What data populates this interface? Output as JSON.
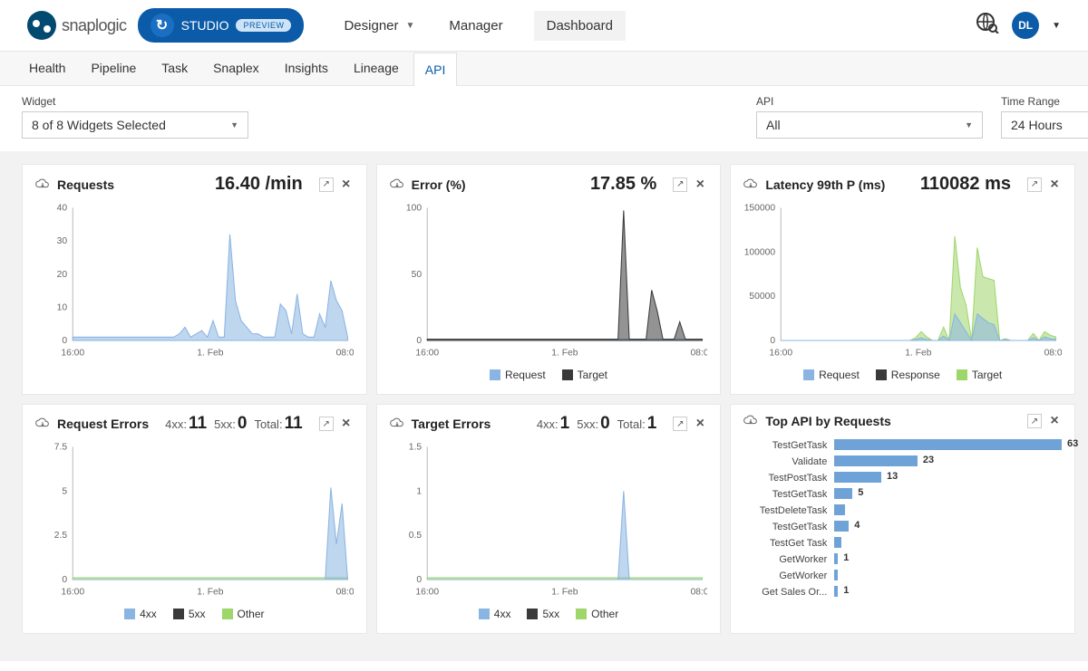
{
  "brand": {
    "name": "snaplogic",
    "studio_label": "STUDIO",
    "preview_label": "PREVIEW"
  },
  "main_nav": {
    "designer": "Designer",
    "manager": "Manager",
    "dashboard": "Dashboard"
  },
  "user": {
    "initials": "DL"
  },
  "subtabs": {
    "health": "Health",
    "pipeline": "Pipeline",
    "task": "Task",
    "snaplex": "Snaplex",
    "insights": "Insights",
    "lineage": "Lineage",
    "api": "API"
  },
  "filters": {
    "widget_label": "Widget",
    "widget_value": "8 of 8 Widgets Selected",
    "api_label": "API",
    "api_value": "All",
    "time_label": "Time Range",
    "time_value": "24 Hours"
  },
  "colors": {
    "blue_fill": "#8ab4e2",
    "blue_line": "#5a8fcf",
    "dark": "#3a3a3a",
    "green": "#9fd66a",
    "green_line": "#7cc143",
    "grid": "#e9e9e9",
    "axis_text": "#777"
  },
  "widgets": {
    "requests": {
      "title": "Requests",
      "metric": "16.40 /min",
      "ylim": [
        0,
        40
      ],
      "yticks": [
        0,
        10,
        20,
        30,
        40
      ],
      "xticks": [
        "16:00",
        "1. Feb",
        "08:00"
      ],
      "series": [
        {
          "name": "requests",
          "color": "#8ab4e2",
          "values": [
            1,
            1,
            1,
            1,
            1,
            1,
            1,
            1,
            1,
            1,
            1,
            1,
            1,
            1,
            1,
            1,
            1,
            1,
            1,
            2,
            4,
            1,
            2,
            3,
            1,
            6,
            1,
            1,
            32,
            12,
            6,
            4,
            2,
            2,
            1,
            1,
            1,
            11,
            9,
            2,
            14,
            2,
            1,
            1,
            8,
            4,
            18,
            12,
            9,
            1
          ]
        }
      ]
    },
    "error": {
      "title": "Error (%)",
      "metric": "17.85 %",
      "ylim": [
        0,
        100
      ],
      "yticks": [
        0,
        50,
        100
      ],
      "xticks": [
        "16:00",
        "1. Feb",
        "08:00"
      ],
      "legend": [
        {
          "label": "Request",
          "color": "#8ab4e2"
        },
        {
          "label": "Target",
          "color": "#3a3a3a"
        }
      ],
      "series": [
        {
          "name": "request",
          "color": "#8ab4e2",
          "values": [
            1,
            1,
            1,
            1,
            1,
            1,
            1,
            1,
            1,
            1,
            1,
            1,
            1,
            1,
            1,
            1,
            1,
            1,
            1,
            1,
            1,
            1,
            1,
            1,
            1,
            1,
            1,
            1,
            1,
            1,
            1,
            1,
            1,
            1,
            1,
            1,
            1,
            1,
            1,
            1,
            1,
            1,
            1,
            1,
            1,
            1,
            1,
            1,
            1,
            1
          ]
        },
        {
          "name": "target",
          "color": "#3a3a3a",
          "values": [
            1,
            1,
            1,
            1,
            1,
            1,
            1,
            1,
            1,
            1,
            1,
            1,
            1,
            1,
            1,
            1,
            1,
            1,
            1,
            1,
            1,
            1,
            1,
            1,
            1,
            1,
            1,
            1,
            1,
            1,
            1,
            1,
            1,
            1,
            1,
            98,
            1,
            1,
            1,
            1,
            38,
            22,
            1,
            1,
            1,
            14,
            1,
            1,
            1,
            1
          ]
        }
      ]
    },
    "latency": {
      "title": "Latency 99th P (ms)",
      "metric": "110082 ms",
      "ylim": [
        0,
        150000
      ],
      "yticks": [
        0,
        50000,
        100000,
        150000
      ],
      "xticks": [
        "16:00",
        "1. Feb",
        "08:00"
      ],
      "legend": [
        {
          "label": "Request",
          "color": "#8ab4e2"
        },
        {
          "label": "Response",
          "color": "#3a3a3a"
        },
        {
          "label": "Target",
          "color": "#9fd66a"
        }
      ],
      "series": [
        {
          "name": "target",
          "color": "#9fd66a",
          "values": [
            0,
            0,
            0,
            0,
            0,
            0,
            0,
            0,
            0,
            0,
            0,
            0,
            0,
            0,
            0,
            0,
            0,
            0,
            0,
            0,
            0,
            0,
            0,
            0,
            3000,
            10000,
            4000,
            0,
            0,
            15000,
            0,
            118000,
            60000,
            40000,
            0,
            105000,
            72000,
            70000,
            68000,
            0,
            2000,
            0,
            0,
            0,
            0,
            8000,
            0,
            10000,
            6000,
            4000
          ]
        },
        {
          "name": "request",
          "color": "#8ab4e2",
          "values": [
            0,
            0,
            0,
            0,
            0,
            0,
            0,
            0,
            0,
            0,
            0,
            0,
            0,
            0,
            0,
            0,
            0,
            0,
            0,
            0,
            0,
            0,
            0,
            0,
            1000,
            3000,
            1000,
            0,
            0,
            5000,
            0,
            30000,
            20000,
            10000,
            0,
            30000,
            25000,
            20000,
            18000,
            0,
            1000,
            0,
            0,
            0,
            0,
            3000,
            0,
            4000,
            2000,
            1000
          ]
        }
      ]
    },
    "req_errors": {
      "title": "Request Errors",
      "stats": {
        "s4xx_label": "4xx:",
        "s4xx": "11",
        "s5xx_label": "5xx:",
        "s5xx": "0",
        "total_label": "Total:",
        "total": "11"
      },
      "ylim": [
        0,
        7.5
      ],
      "yticks": [
        0,
        2.5,
        5,
        7.5
      ],
      "xticks": [
        "16:00",
        "1. Feb",
        "08:00"
      ],
      "legend": [
        {
          "label": "4xx",
          "color": "#8ab4e2"
        },
        {
          "label": "5xx",
          "color": "#3a3a3a"
        },
        {
          "label": "Other",
          "color": "#9fd66a"
        }
      ],
      "series": [
        {
          "name": "other",
          "color": "#9fd66a",
          "values": [
            0.1,
            0.1,
            0.1,
            0.1,
            0.1,
            0.1,
            0.1,
            0.1,
            0.1,
            0.1,
            0.1,
            0.1,
            0.1,
            0.1,
            0.1,
            0.1,
            0.1,
            0.1,
            0.1,
            0.1,
            0.1,
            0.1,
            0.1,
            0.1,
            0.1,
            0.1,
            0.1,
            0.1,
            0.1,
            0.1,
            0.1,
            0.1,
            0.1,
            0.1,
            0.1,
            0.1,
            0.1,
            0.1,
            0.1,
            0.1,
            0.1,
            0.1,
            0.1,
            0.1,
            0.1,
            0.1,
            0.1,
            0.1,
            0.1,
            0.1
          ]
        },
        {
          "name": "4xx",
          "color": "#8ab4e2",
          "values": [
            0,
            0,
            0,
            0,
            0,
            0,
            0,
            0,
            0,
            0,
            0,
            0,
            0,
            0,
            0,
            0,
            0,
            0,
            0,
            0,
            0,
            0,
            0,
            0,
            0,
            0,
            0,
            0,
            0,
            0,
            0,
            0,
            0,
            0,
            0,
            0,
            0,
            0,
            0,
            0,
            0,
            0,
            0,
            0,
            0,
            0,
            5.2,
            2.0,
            4.3,
            0
          ]
        }
      ]
    },
    "tgt_errors": {
      "title": "Target Errors",
      "stats": {
        "s4xx_label": "4xx:",
        "s4xx": "1",
        "s5xx_label": "5xx:",
        "s5xx": "0",
        "total_label": "Total:",
        "total": "1"
      },
      "ylim": [
        0,
        1.5
      ],
      "yticks": [
        0,
        0.5,
        1,
        1.5
      ],
      "xticks": [
        "16:00",
        "1. Feb",
        "08:00"
      ],
      "legend": [
        {
          "label": "4xx",
          "color": "#8ab4e2"
        },
        {
          "label": "5xx",
          "color": "#3a3a3a"
        },
        {
          "label": "Other",
          "color": "#9fd66a"
        }
      ],
      "series": [
        {
          "name": "other",
          "color": "#9fd66a",
          "values": [
            0.02,
            0.02,
            0.02,
            0.02,
            0.02,
            0.02,
            0.02,
            0.02,
            0.02,
            0.02,
            0.02,
            0.02,
            0.02,
            0.02,
            0.02,
            0.02,
            0.02,
            0.02,
            0.02,
            0.02,
            0.02,
            0.02,
            0.02,
            0.02,
            0.02,
            0.02,
            0.02,
            0.02,
            0.02,
            0.02,
            0.02,
            0.02,
            0.02,
            0.02,
            0.02,
            0.02,
            0.02,
            0.02,
            0.02,
            0.02,
            0.02,
            0.02,
            0.02,
            0.02,
            0.02,
            0.02,
            0.02,
            0.02,
            0.02,
            0.02
          ]
        },
        {
          "name": "4xx",
          "color": "#8ab4e2",
          "values": [
            0,
            0,
            0,
            0,
            0,
            0,
            0,
            0,
            0,
            0,
            0,
            0,
            0,
            0,
            0,
            0,
            0,
            0,
            0,
            0,
            0,
            0,
            0,
            0,
            0,
            0,
            0,
            0,
            0,
            0,
            0,
            0,
            0,
            0,
            0,
            1.0,
            0,
            0,
            0,
            0,
            0,
            0,
            0,
            0,
            0,
            0,
            0,
            0,
            0,
            0
          ]
        }
      ]
    },
    "top_api": {
      "title": "Top API by Requests",
      "max": 63,
      "rows": [
        {
          "label": "TestGetTask",
          "value": 63,
          "show": "63"
        },
        {
          "label": "Validate",
          "value": 23,
          "show": "23"
        },
        {
          "label": "TestPostTask",
          "value": 13,
          "show": "13"
        },
        {
          "label": "TestGetTask",
          "value": 5,
          "show": "5"
        },
        {
          "label": "TestDeleteTask",
          "value": 3,
          "show": ""
        },
        {
          "label": "TestGetTask",
          "value": 4,
          "show": "4"
        },
        {
          "label": "TestGet Task",
          "value": 2,
          "show": ""
        },
        {
          "label": "GetWorker",
          "value": 1,
          "show": "1"
        },
        {
          "label": "GetWorker",
          "value": 1,
          "show": ""
        },
        {
          "label": "Get Sales Or...",
          "value": 1,
          "show": "1"
        }
      ]
    }
  }
}
